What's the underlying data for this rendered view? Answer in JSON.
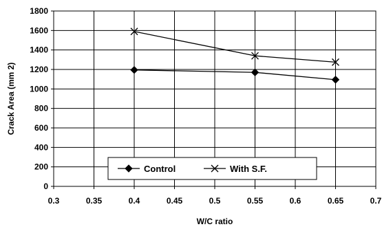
{
  "chart_data": {
    "type": "line",
    "xlabel": "W/C ratio",
    "ylabel": "Crack Area  (mm 2)",
    "xlim": [
      0.3,
      0.7
    ],
    "ylim": [
      0,
      1800
    ],
    "x_ticks": [
      "0.3",
      "0.35",
      "0.4",
      "0.45",
      "0.5",
      "0.55",
      "0.6",
      "0.65",
      "0.7"
    ],
    "y_ticks": [
      "0",
      "200",
      "400",
      "600",
      "800",
      "1000",
      "1200",
      "1400",
      "1600",
      "1800"
    ],
    "grid": "horizontal and vertical",
    "legend_position": "bottom-center inside plot",
    "series": [
      {
        "name": "Control",
        "marker": "diamond",
        "color": "#000000",
        "x": [
          0.4,
          0.55,
          0.65
        ],
        "y": [
          1195,
          1170,
          1095
        ]
      },
      {
        "name": "With S.F.",
        "marker": "x",
        "color": "#000000",
        "x": [
          0.4,
          0.55,
          0.65
        ],
        "y": [
          1590,
          1340,
          1275
        ]
      }
    ]
  }
}
